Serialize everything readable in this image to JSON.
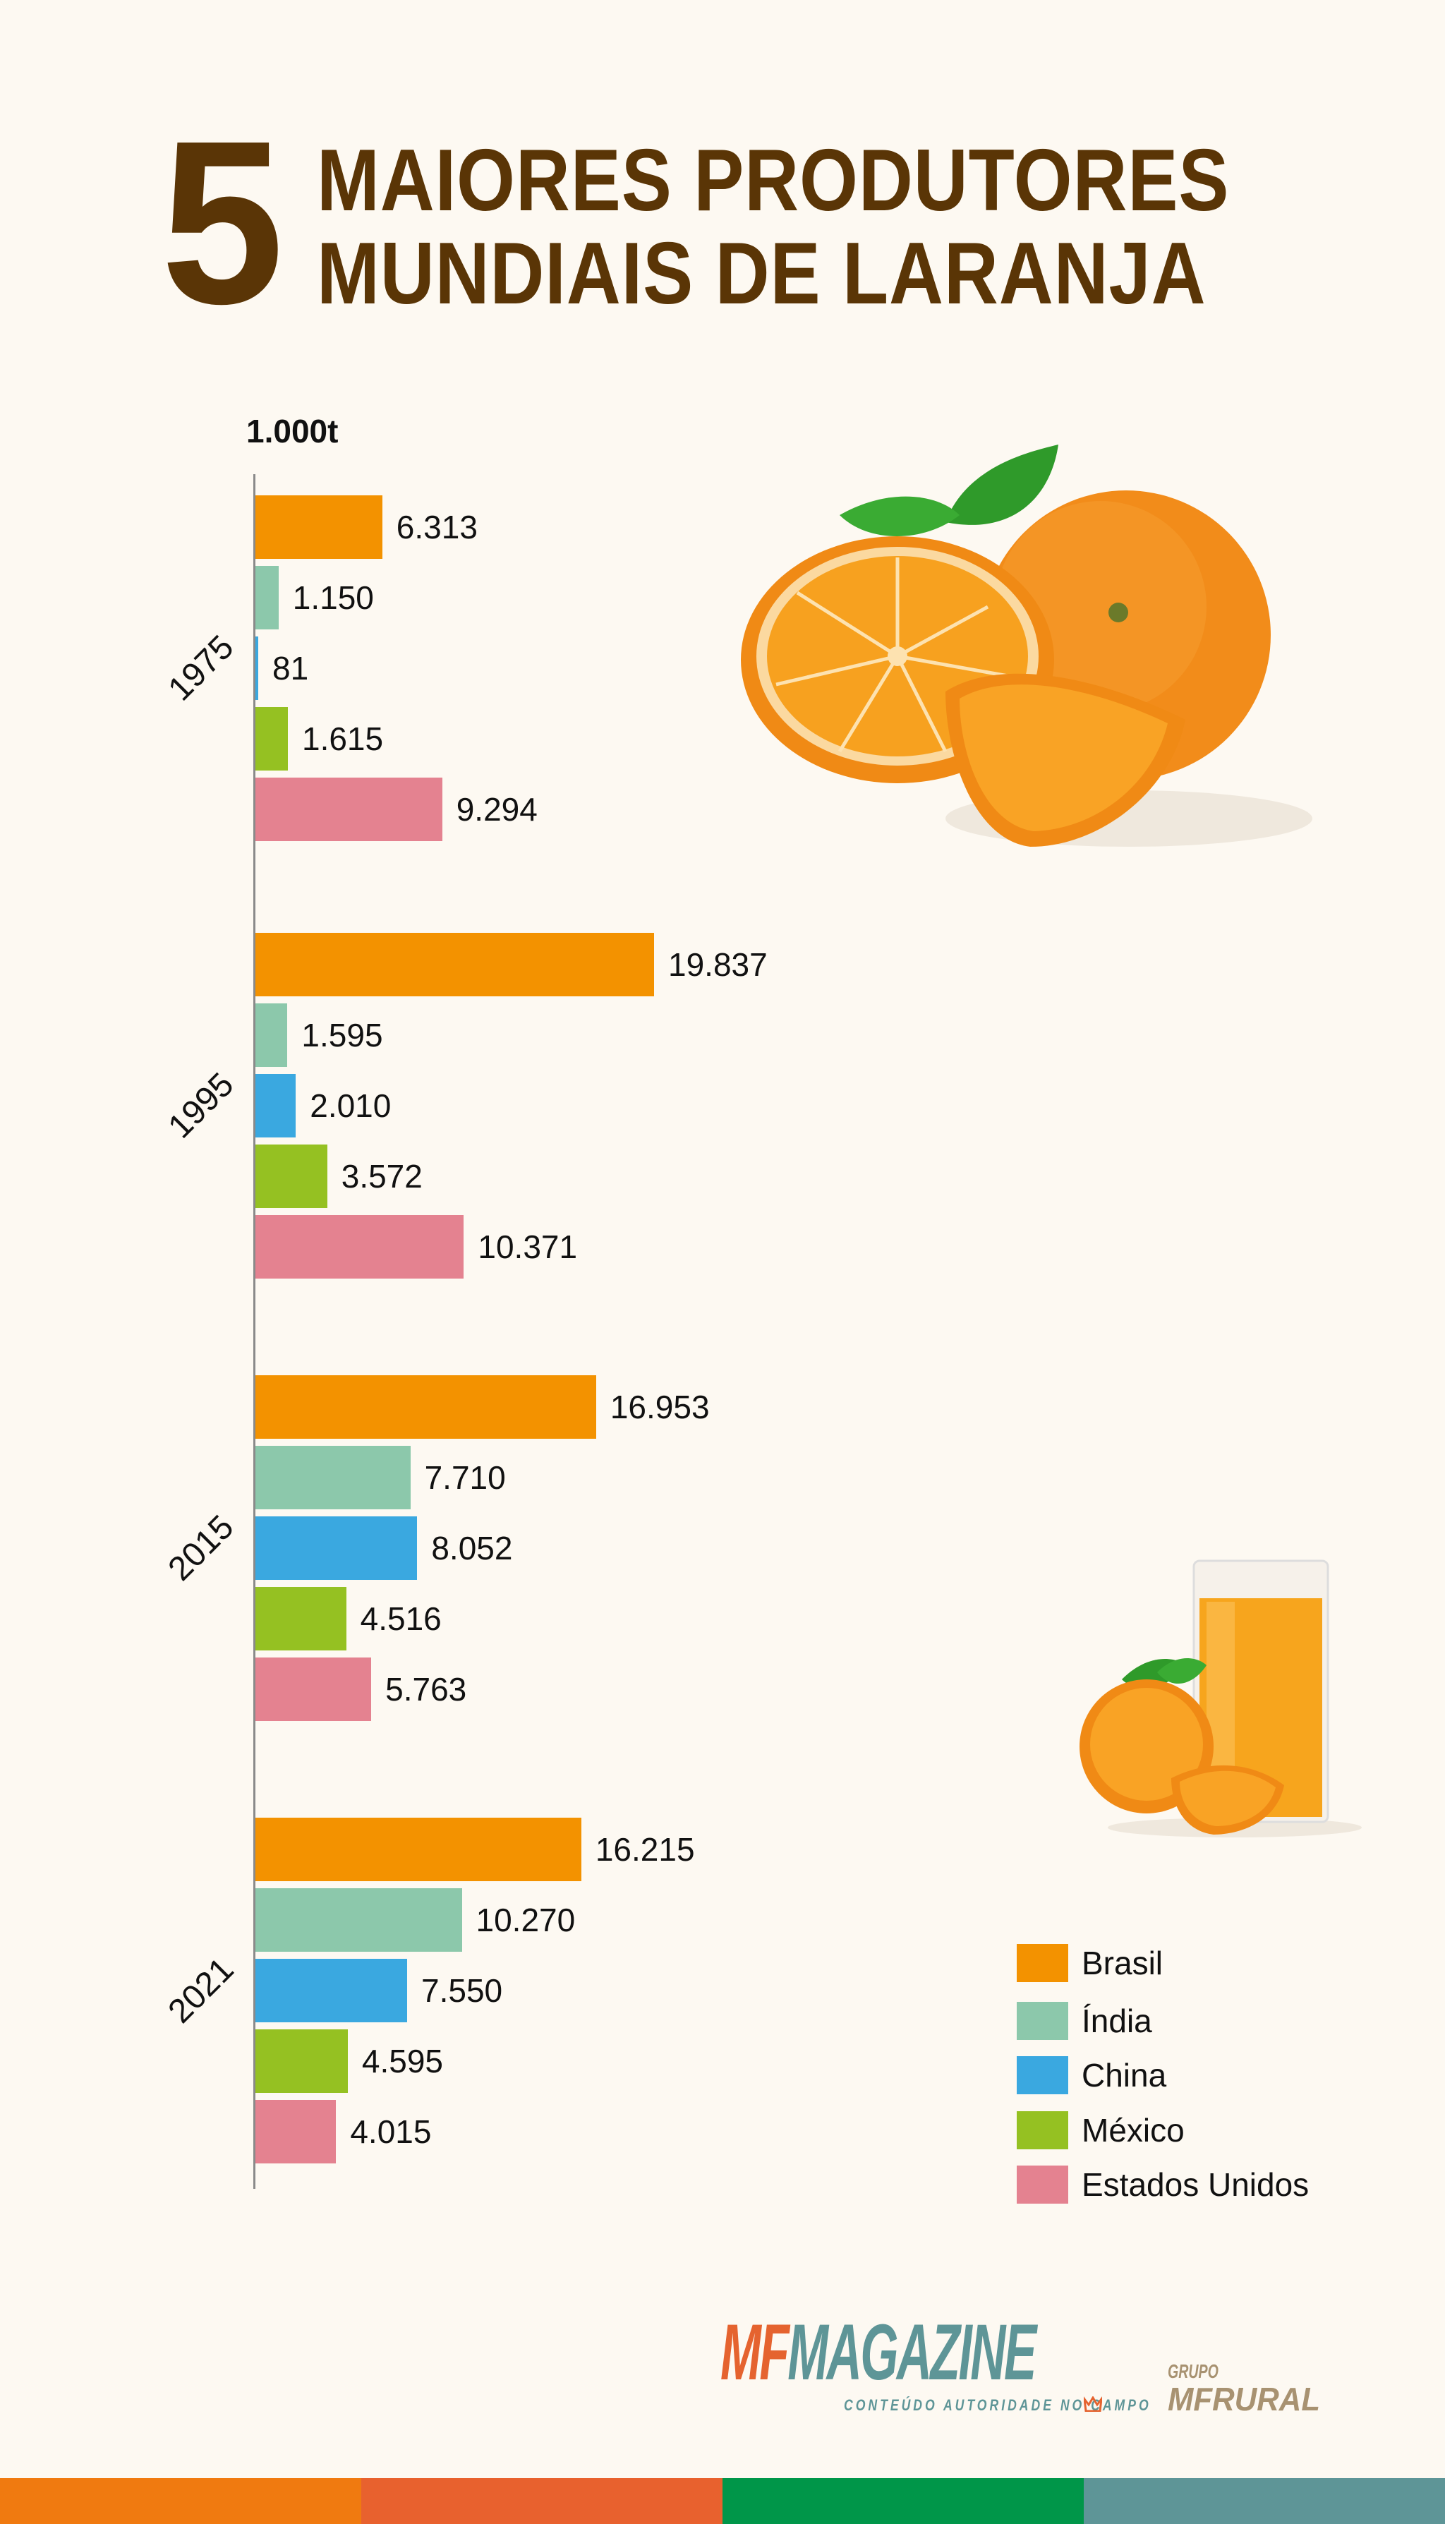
{
  "title": {
    "number": "5",
    "line1": "MAIORES PRODUTORES",
    "line2": "MUNDIAIS DE LARANJA",
    "color": "#5a3506"
  },
  "chart_data": {
    "type": "bar",
    "orientation": "horizontal",
    "unit_label": "1.000t",
    "categories": [
      "1975",
      "1995",
      "2015",
      "2021"
    ],
    "series": [
      {
        "name": "Brasil",
        "color": "#f39200",
        "values": [
          6313,
          19837,
          16953,
          16215
        ],
        "labels": [
          "6.313",
          "19.837",
          "16.953",
          "16.215"
        ]
      },
      {
        "name": "Índia",
        "color": "#8cc8ab",
        "values": [
          1150,
          1595,
          7710,
          10270
        ],
        "labels": [
          "1.150",
          "1.595",
          "7.710",
          "10.270"
        ]
      },
      {
        "name": "China",
        "color": "#3aa8e0",
        "values": [
          81,
          2010,
          8052,
          7550
        ],
        "labels": [
          "81",
          "2.010",
          "8.052",
          "7.550"
        ]
      },
      {
        "name": "México",
        "color": "#95c122",
        "values": [
          1615,
          3572,
          4516,
          4595
        ],
        "labels": [
          "1.615",
          "3.572",
          "4.516",
          "4.595"
        ]
      },
      {
        "name": "Estados Unidos",
        "color": "#e48290",
        "values": [
          9294,
          10371,
          5763,
          4015
        ],
        "labels": [
          "9.294",
          "10.371",
          "5.763",
          "4.015"
        ]
      }
    ],
    "xlim": [
      0,
      20000
    ],
    "grid": false,
    "legend_position": "bottom-right"
  },
  "footer": {
    "logo_mf": "MF",
    "logo_magazine": "MAGAZINE",
    "tagline": "CONTEÚDO AUTORIDADE NO CAMPO",
    "grupo": "GRUPO",
    "mfrural": "MFRURAL",
    "stripe_colors": [
      "#f07a10",
      "#e8612e",
      "#009649",
      "#5e9597"
    ]
  }
}
